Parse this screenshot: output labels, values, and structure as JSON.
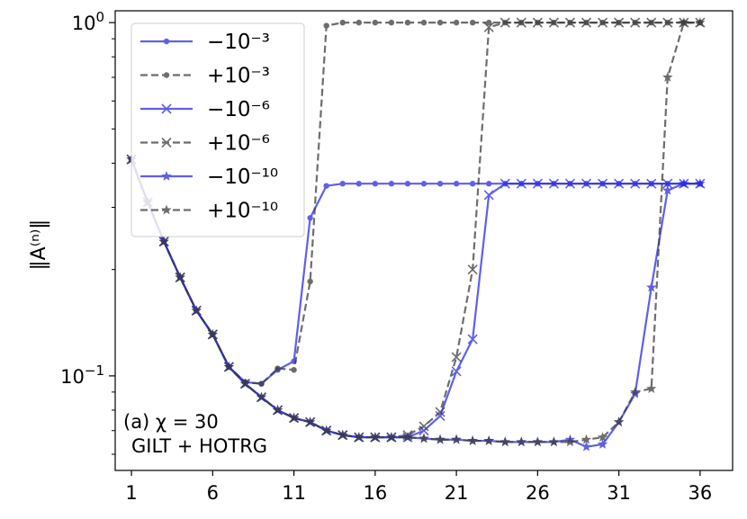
{
  "chart_data": {
    "type": "line",
    "yscale": "log",
    "ylabel": "‖A⁽ⁿ⁾‖",
    "xlabel": "",
    "xlim": [
      0,
      38
    ],
    "ylim": [
      0.054,
      1.08
    ],
    "xticks": [
      1,
      6,
      11,
      16,
      21,
      26,
      31,
      36
    ],
    "yticks": [
      {
        "value": 1.0,
        "base": "10",
        "exp": "0"
      },
      {
        "value": 0.1,
        "base": "10",
        "exp": "−1"
      }
    ],
    "annotation": {
      "line1": "(a) χ = 30",
      "line2": "GILT + HOTRG"
    },
    "legend_position": "upper left",
    "x": [
      1,
      2,
      3,
      4,
      5,
      6,
      7,
      8,
      9,
      10,
      11,
      12,
      13,
      14,
      15,
      16,
      17,
      18,
      19,
      20,
      21,
      22,
      23,
      24,
      25,
      26,
      27,
      28,
      29,
      30,
      31,
      32,
      33,
      34,
      35,
      36
    ],
    "series": [
      {
        "name": "−10⁻³",
        "color": "#2a2ae6",
        "marker": "dot",
        "linestyle": "solid",
        "values": [
          0.41,
          0.31,
          0.24,
          0.19,
          0.153,
          0.131,
          0.106,
          0.096,
          0.095,
          0.104,
          0.11,
          0.28,
          0.345,
          0.35,
          0.35,
          0.35,
          0.35,
          0.35,
          0.35,
          0.35,
          0.35,
          0.35,
          0.35,
          0.35,
          0.35,
          0.35,
          0.35,
          0.35,
          0.35,
          0.35,
          0.35,
          0.35,
          0.35,
          0.35,
          0.35,
          0.35
        ]
      },
      {
        "name": "+10⁻³",
        "color": "#3d3d3d",
        "marker": "dot",
        "linestyle": "dashed",
        "values": [
          0.41,
          0.31,
          0.24,
          0.19,
          0.153,
          0.131,
          0.106,
          0.096,
          0.095,
          0.105,
          0.104,
          0.185,
          0.98,
          1.0,
          1.0,
          1.0,
          1.0,
          1.0,
          1.0,
          1.0,
          1.0,
          1.0,
          1.0,
          1.0,
          1.0,
          1.0,
          1.0,
          1.0,
          1.0,
          1.0,
          1.0,
          1.0,
          1.0,
          1.0,
          1.0,
          1.0
        ]
      },
      {
        "name": "−10⁻⁶",
        "color": "#2a2ae6",
        "marker": "x",
        "linestyle": "solid",
        "values": [
          0.41,
          0.31,
          0.24,
          0.19,
          0.153,
          0.131,
          0.106,
          0.095,
          0.087,
          0.08,
          0.076,
          0.074,
          0.07,
          0.068,
          0.067,
          0.067,
          0.067,
          0.067,
          0.07,
          0.077,
          0.103,
          0.127,
          0.325,
          0.35,
          0.35,
          0.35,
          0.35,
          0.35,
          0.35,
          0.35,
          0.35,
          0.35,
          0.35,
          0.35,
          0.35,
          0.35
        ]
      },
      {
        "name": "+10⁻⁶",
        "color": "#3d3d3d",
        "marker": "x",
        "linestyle": "dashed",
        "values": [
          0.41,
          0.31,
          0.24,
          0.19,
          0.153,
          0.131,
          0.106,
          0.095,
          0.087,
          0.08,
          0.076,
          0.074,
          0.07,
          0.068,
          0.067,
          0.067,
          0.067,
          0.068,
          0.072,
          0.079,
          0.113,
          0.2,
          0.97,
          1.0,
          1.0,
          1.0,
          1.0,
          1.0,
          1.0,
          1.0,
          1.0,
          1.0,
          1.0,
          1.0,
          1.0,
          1.0
        ]
      },
      {
        "name": "−10⁻¹⁰",
        "color": "#2a2ae6",
        "marker": "star",
        "linestyle": "solid",
        "values": [
          0.41,
          0.31,
          0.24,
          0.19,
          0.153,
          0.131,
          0.106,
          0.095,
          0.087,
          0.08,
          0.076,
          0.074,
          0.07,
          0.068,
          0.067,
          0.067,
          0.067,
          0.067,
          0.0665,
          0.066,
          0.066,
          0.0655,
          0.0655,
          0.065,
          0.065,
          0.065,
          0.065,
          0.066,
          0.063,
          0.064,
          0.074,
          0.089,
          0.178,
          0.335,
          0.35,
          0.35
        ]
      },
      {
        "name": "+10⁻¹⁰",
        "color": "#3d3d3d",
        "marker": "star",
        "linestyle": "dashed",
        "values": [
          0.41,
          0.31,
          0.24,
          0.19,
          0.153,
          0.131,
          0.106,
          0.095,
          0.087,
          0.08,
          0.076,
          0.074,
          0.07,
          0.068,
          0.067,
          0.067,
          0.067,
          0.067,
          0.0665,
          0.066,
          0.066,
          0.0655,
          0.0655,
          0.065,
          0.065,
          0.065,
          0.065,
          0.065,
          0.066,
          0.067,
          0.074,
          0.09,
          0.092,
          0.7,
          1.0,
          1.0
        ]
      }
    ]
  }
}
